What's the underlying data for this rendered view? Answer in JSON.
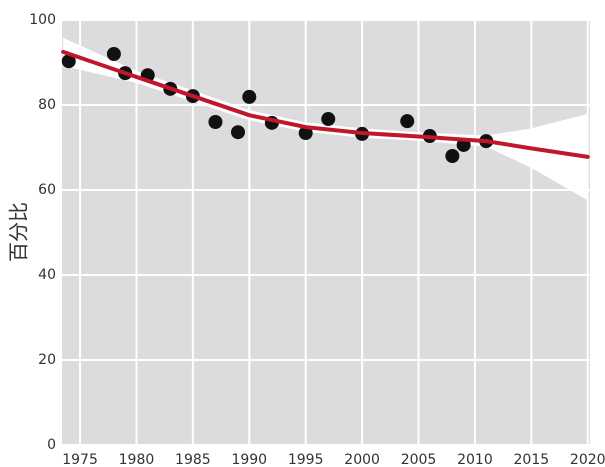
{
  "chart_data": {
    "type": "scatter",
    "y_label": "百分比",
    "x": [
      1974,
      1978,
      1979,
      1981,
      1983,
      1985,
      1987,
      1989,
      1990,
      1992,
      1995,
      1997,
      2000,
      2004,
      2006,
      2008,
      2009,
      2011
    ],
    "series": [
      {
        "color": "#111111",
        "values": [
          90.3,
          92,
          87.5,
          87,
          83.8,
          82.1,
          76,
          73.6,
          81.9,
          75.8,
          73.4,
          76.7,
          73.2,
          76.2,
          72.7,
          68,
          70.6,
          71.5
        ]
      }
    ],
    "fit": {
      "color": "#c0182a",
      "band_color": "#ffffff",
      "x": [
        1973.5,
        1980,
        1985,
        1990,
        1995,
        2000,
        2005,
        2011,
        2015,
        2020
      ],
      "values": [
        92.5,
        86.6,
        82.1,
        77.6,
        74.8,
        73.4,
        72.6,
        71.5,
        69.8,
        67.8
      ],
      "upper": [
        95.8,
        88,
        83.4,
        78.8,
        75.9,
        74.5,
        73.6,
        72.8,
        74.5,
        77.9
      ],
      "lower": [
        89.2,
        85.2,
        80.8,
        76.4,
        73.7,
        72.3,
        71.6,
        70.2,
        65.2,
        57.6
      ]
    },
    "xlim": [
      1973.4,
      2020.2
    ],
    "ylim": [
      0,
      100
    ],
    "xticks": [
      1975,
      1980,
      1985,
      1990,
      1995,
      2000,
      2005,
      2010,
      2015,
      2020
    ],
    "yticks": [
      0,
      20,
      40,
      60,
      80,
      100
    ],
    "grid": true,
    "background": "#dcdcde"
  }
}
